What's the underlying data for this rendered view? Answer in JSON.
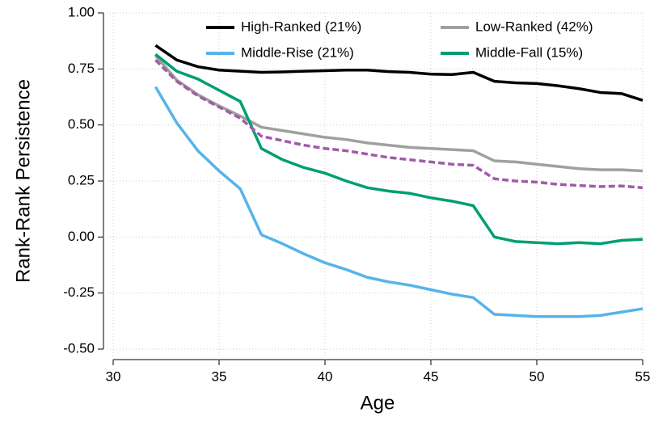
{
  "chart_data": {
    "type": "line",
    "xlabel": "Age",
    "ylabel": "Rank-Rank Persistence",
    "x": [
      32,
      33,
      34,
      35,
      36,
      37,
      38,
      39,
      40,
      41,
      42,
      43,
      44,
      45,
      46,
      47,
      48,
      49,
      50,
      51,
      52,
      53,
      54,
      55
    ],
    "series": [
      {
        "name": "High-Ranked (21%)",
        "color": "#000000",
        "values": [
          0.855,
          0.79,
          0.76,
          0.745,
          0.74,
          0.735,
          0.737,
          0.74,
          0.742,
          0.745,
          0.745,
          0.738,
          0.735,
          0.727,
          0.725,
          0.735,
          0.695,
          0.688,
          0.685,
          0.675,
          0.662,
          0.645,
          0.64,
          0.61
        ]
      },
      {
        "name": "Low-Ranked (42%)",
        "color": "#a0a0a0",
        "values": [
          0.81,
          0.7,
          0.635,
          0.585,
          0.54,
          0.49,
          0.475,
          0.46,
          0.445,
          0.435,
          0.42,
          0.41,
          0.4,
          0.395,
          0.39,
          0.385,
          0.34,
          0.335,
          0.325,
          0.315,
          0.305,
          0.3,
          0.3,
          0.295
        ]
      },
      {
        "name": "Middle-Rise (21%)",
        "color": "#56b4e9",
        "values": [
          0.67,
          0.51,
          0.385,
          0.295,
          0.215,
          0.01,
          -0.03,
          -0.075,
          -0.115,
          -0.145,
          -0.18,
          -0.2,
          -0.215,
          -0.235,
          -0.255,
          -0.27,
          -0.345,
          -0.35,
          -0.355,
          -0.355,
          -0.355,
          -0.35,
          -0.335,
          -0.32
        ]
      },
      {
        "name": "Middle-Fall (15%)",
        "color": "#009e73",
        "values": [
          0.815,
          0.74,
          0.705,
          0.655,
          0.605,
          0.395,
          0.345,
          0.31,
          0.285,
          0.25,
          0.22,
          0.205,
          0.195,
          0.175,
          0.16,
          0.14,
          0.0,
          -0.02,
          -0.025,
          -0.03,
          -0.025,
          -0.03,
          -0.015,
          -0.01
        ]
      },
      {
        "color": "#a05ca8",
        "dashed": true,
        "values": [
          0.79,
          0.695,
          0.63,
          0.58,
          0.53,
          0.45,
          0.43,
          0.41,
          0.395,
          0.385,
          0.37,
          0.355,
          0.345,
          0.335,
          0.325,
          0.32,
          0.26,
          0.25,
          0.245,
          0.235,
          0.23,
          0.225,
          0.228,
          0.22
        ]
      }
    ],
    "xlim": [
      30,
      55
    ],
    "xticks": [
      30,
      35,
      40,
      45,
      50,
      55
    ],
    "ylim": [
      -0.5,
      1.0
    ],
    "yticks": [
      {
        "value": -0.5,
        "label": "-0.50"
      },
      {
        "value": -0.25,
        "label": "-0.25"
      },
      {
        "value": 0,
        "label": "0.00"
      },
      {
        "value": 0.25,
        "label": "0.25"
      },
      {
        "value": 0.5,
        "label": "0.50"
      },
      {
        "value": 0.75,
        "label": "0.75"
      },
      {
        "value": 1.0,
        "label": "1.00"
      }
    ],
    "grid": true,
    "legend": "top"
  }
}
